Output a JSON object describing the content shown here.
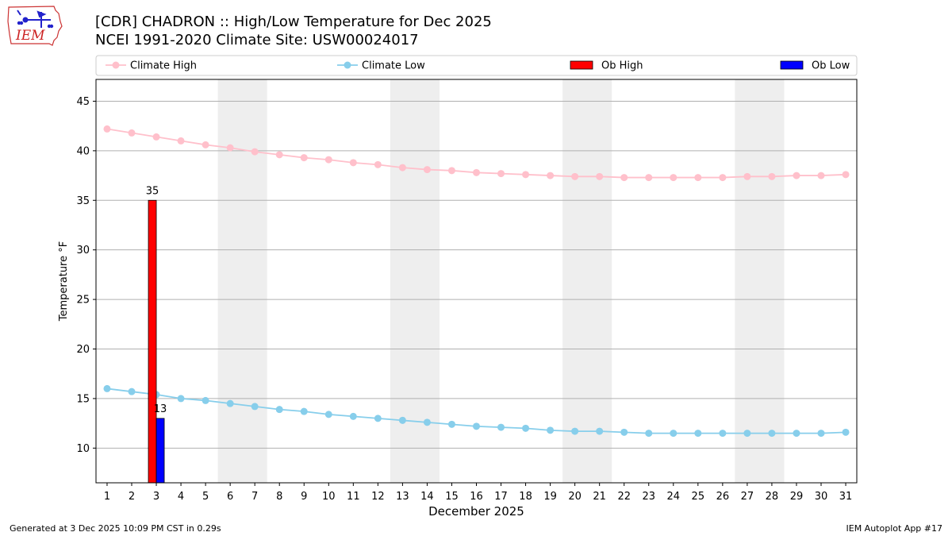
{
  "header": {
    "title_line1": "[CDR] CHADRON :: High/Low Temperature for Dec 2025",
    "title_line2": "NCEI 1991-2020 Climate Site: USW00024017",
    "logo_text": "IEM"
  },
  "footer": {
    "generated": "Generated at 3 Dec 2025 10:09 PM CST in 0.29s",
    "app": "IEM Autoplot App #17"
  },
  "colors": {
    "climate_high": "#ffc0cb",
    "climate_low": "#87ceeb",
    "ob_high": "#ff0000",
    "ob_low": "#0000ff",
    "weekend_band": "#eeeeee",
    "grid": "#b0b0b0"
  },
  "chart_data": {
    "type": "bar",
    "title": "[CDR] CHADRON :: High/Low Temperature for Dec 2025",
    "xlabel": "December 2025",
    "ylabel": "Temperature °F",
    "ylim": [
      6.5,
      47.2
    ],
    "yticks": [
      10,
      15,
      20,
      25,
      30,
      35,
      40,
      45
    ],
    "grid": "horizontal",
    "legend_position": "top",
    "categories": [
      "1",
      "2",
      "3",
      "4",
      "5",
      "6",
      "7",
      "8",
      "9",
      "10",
      "11",
      "12",
      "13",
      "14",
      "15",
      "16",
      "17",
      "18",
      "19",
      "20",
      "21",
      "22",
      "23",
      "24",
      "25",
      "26",
      "27",
      "28",
      "29",
      "30",
      "31"
    ],
    "weekend_days": [
      [
        6,
        7
      ],
      [
        13,
        14
      ],
      [
        20,
        21
      ],
      [
        27,
        28
      ]
    ],
    "series": [
      {
        "name": "Climate High",
        "kind": "line",
        "values": [
          42.2,
          41.8,
          41.4,
          41.0,
          40.6,
          40.3,
          39.9,
          39.6,
          39.3,
          39.1,
          38.8,
          38.6,
          38.3,
          38.1,
          38.0,
          37.8,
          37.7,
          37.6,
          37.5,
          37.4,
          37.4,
          37.3,
          37.3,
          37.3,
          37.3,
          37.3,
          37.4,
          37.4,
          37.5,
          37.5,
          37.6
        ]
      },
      {
        "name": "Climate Low",
        "kind": "line",
        "values": [
          16.0,
          15.7,
          15.4,
          15.0,
          14.8,
          14.5,
          14.2,
          13.9,
          13.7,
          13.4,
          13.2,
          13.0,
          12.8,
          12.6,
          12.4,
          12.2,
          12.1,
          12.0,
          11.8,
          11.7,
          11.7,
          11.6,
          11.5,
          11.5,
          11.5,
          11.5,
          11.5,
          11.5,
          11.5,
          11.5,
          11.6
        ]
      },
      {
        "name": "Ob High",
        "kind": "bar",
        "values": {
          "3": 35
        },
        "labels": [
          "35"
        ]
      },
      {
        "name": "Ob Low",
        "kind": "bar",
        "values": {
          "3": 13
        },
        "labels": [
          "13"
        ]
      }
    ]
  }
}
